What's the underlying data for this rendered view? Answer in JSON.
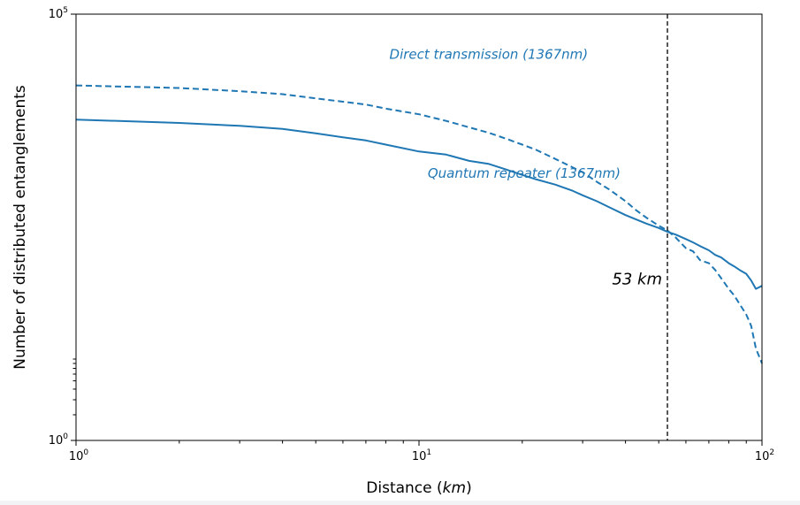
{
  "chart_data": {
    "type": "line",
    "xlabel": "Distance (km)",
    "xlabel_main": "Distance (",
    "xlabel_unit": "km",
    "xlabel_close": ")",
    "ylabel": "Number of distributed entanglements",
    "xscale": "log",
    "yscale": "log",
    "xlim": [
      1,
      100
    ],
    "ylim": [
      1,
      100000
    ],
    "x_ticks": [
      {
        "value": 1,
        "base": "10",
        "exp": "0"
      },
      {
        "value": 10,
        "base": "10",
        "exp": "1"
      },
      {
        "value": 100,
        "base": "10",
        "exp": "2"
      }
    ],
    "y_ticks": [
      {
        "value": 1,
        "base": "10",
        "exp": "0"
      },
      {
        "value": 100000,
        "base": "10",
        "exp": "5"
      }
    ],
    "grid": false,
    "color": "#1f77b4",
    "series": [
      {
        "name": "Direct transmission (1367nm)",
        "style": "dashed",
        "x": [
          1,
          2,
          3,
          4,
          5,
          6,
          7,
          8,
          10,
          12,
          14,
          16,
          18,
          20,
          22,
          25,
          28,
          30,
          33,
          36,
          40,
          43,
          46,
          50,
          53,
          56,
          60,
          63,
          66,
          70,
          73,
          76,
          80,
          83,
          86,
          90,
          93,
          96,
          100
        ],
        "y": [
          14600,
          13600,
          12500,
          11500,
          10300,
          9400,
          8700,
          7800,
          6700,
          5600,
          4700,
          4050,
          3450,
          2950,
          2550,
          2000,
          1600,
          1400,
          1080,
          870,
          640,
          500,
          410,
          330,
          290,
          240,
          180,
          165,
          130,
          120,
          100,
          80,
          60,
          50,
          40,
          30,
          22,
          12,
          8
        ]
      },
      {
        "name": "Quantum repeater (1367nm)",
        "style": "solid",
        "x": [
          1,
          2,
          3,
          4,
          5,
          6,
          7,
          8,
          10,
          12,
          14,
          16,
          18,
          20,
          22,
          25,
          28,
          30,
          33,
          36,
          40,
          43,
          46,
          50,
          53,
          56,
          60,
          63,
          66,
          70,
          73,
          76,
          80,
          83,
          86,
          90,
          93,
          96,
          100
        ],
        "y": [
          5800,
          5300,
          4900,
          4500,
          4000,
          3600,
          3300,
          2950,
          2450,
          2250,
          1900,
          1750,
          1500,
          1300,
          1150,
          1000,
          850,
          750,
          640,
          540,
          440,
          390,
          350,
          310,
          280,
          260,
          230,
          210,
          190,
          170,
          150,
          140,
          120,
          110,
          100,
          90,
          75,
          60,
          65
        ]
      }
    ],
    "annotations": [
      {
        "text": "Direct transmission (1367nm)",
        "x": 8.2,
        "y": 30000
      },
      {
        "text": "Quantum repeater (1367nm)",
        "x": 10.6,
        "y": 1200
      },
      {
        "text": "53 km",
        "x": 44,
        "y": 68
      }
    ],
    "vline": {
      "x": 53,
      "style": "dashed",
      "color": "#000000",
      "label": "53 km"
    }
  }
}
